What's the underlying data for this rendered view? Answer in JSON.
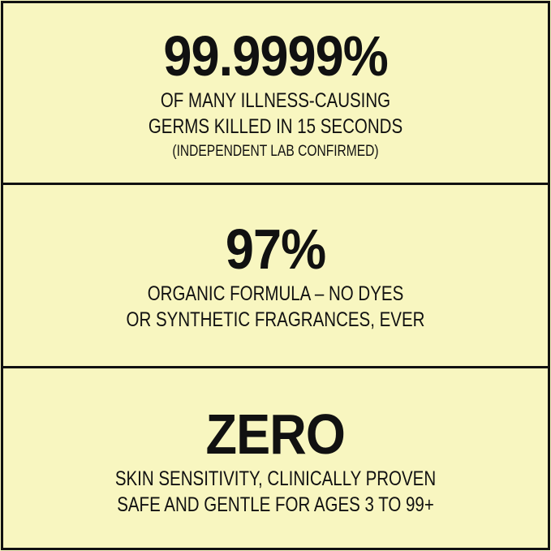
{
  "panels": [
    {
      "headline": "99.9999%",
      "lines": [
        "OF MANY ILLNESS-CAUSING",
        "GERMS KILLED IN 15 SECONDS"
      ],
      "note": "(INDEPENDENT LAB CONFIRMED)"
    },
    {
      "headline": "97%",
      "lines": [
        "ORGANIC FORMULA – NO DYES",
        "OR SYNTHETIC FRAGRANCES, EVER"
      ]
    },
    {
      "headline": "ZERO",
      "lines": [
        "SKIN SENSITIVITY, CLINICALLY PROVEN",
        "SAFE AND GENTLE FOR  AGES 3 TO 99+"
      ]
    }
  ],
  "colors": {
    "background": "#f8f6c0",
    "border": "#111111"
  }
}
